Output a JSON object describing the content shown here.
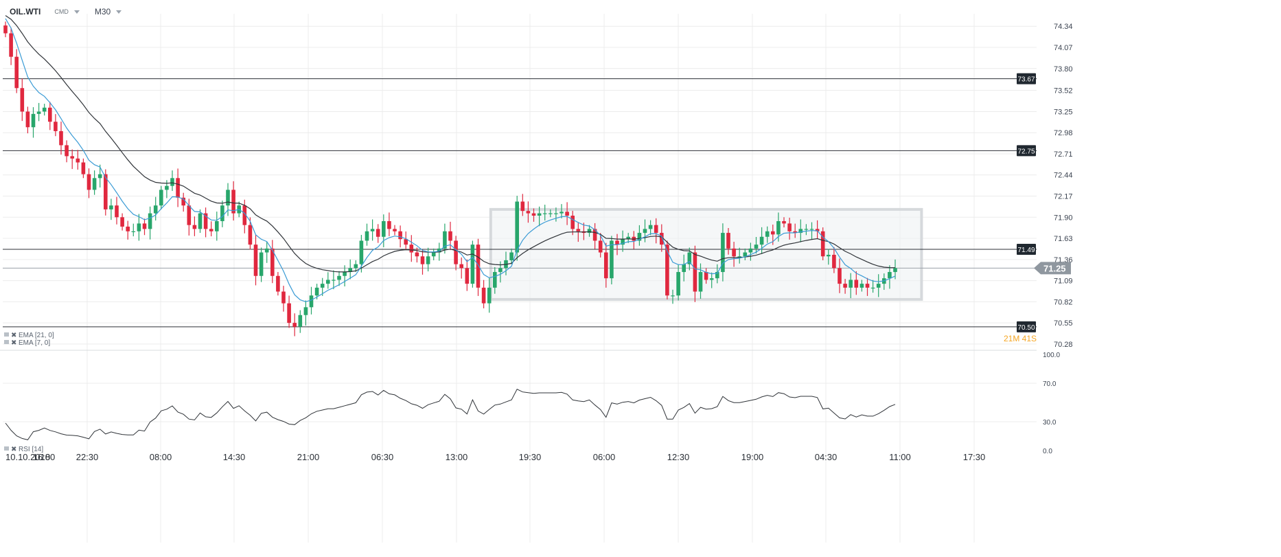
{
  "toolbar": {
    "symbol": "OIL.WTI",
    "instrument_type": "CMD",
    "timeframe": "M30"
  },
  "chart_data": {
    "type": "candlestick",
    "price_axis": {
      "ticks": [
        "74.34",
        "74.07",
        "73.80",
        "73.52",
        "73.25",
        "72.98",
        "72.71",
        "72.44",
        "72.17",
        "71.90",
        "71.63",
        "71.36",
        "71.09",
        "70.82",
        "70.55",
        "70.28"
      ],
      "range": [
        70.2,
        74.5
      ]
    },
    "time_axis": {
      "ticks": [
        "10.10.2018",
        "16:00",
        "22:30",
        "08:00",
        "14:30",
        "21:00",
        "06:30",
        "13:00",
        "19:30",
        "06:00",
        "12:30",
        "19:00",
        "04:30",
        "11:00",
        "17:30"
      ]
    },
    "horizontal_levels": [
      {
        "label": "73.67",
        "value": 73.67
      },
      {
        "label": "72.75",
        "value": 72.75
      },
      {
        "label": "71.49",
        "value": 71.49
      },
      {
        "label": "70.50",
        "value": 70.5
      }
    ],
    "current_price": {
      "label": "71.25",
      "value": 71.25,
      "countdown": "21M 41S"
    },
    "consolidation_box": {
      "price_top": 72.0,
      "price_bottom": 70.85,
      "from_index": 88,
      "to_index": 164
    },
    "indicators": [
      {
        "label": "EMA [21, 0]",
        "period": 21,
        "color": "#2f3338"
      },
      {
        "label": "EMA [7, 0]",
        "period": 7,
        "color": "#3a9bd5"
      }
    ],
    "candle_closes": [
      74.25,
      73.95,
      73.55,
      73.25,
      73.05,
      73.22,
      73.25,
      73.3,
      73.12,
      73.0,
      72.82,
      72.68,
      72.65,
      72.6,
      72.45,
      72.25,
      72.4,
      72.45,
      72.0,
      72.05,
      71.9,
      71.78,
      71.72,
      71.72,
      71.82,
      71.75,
      71.95,
      72.05,
      72.25,
      72.3,
      72.4,
      72.15,
      72.05,
      71.8,
      71.75,
      71.95,
      71.75,
      71.72,
      71.85,
      72.05,
      72.25,
      71.95,
      72.05,
      71.8,
      71.55,
      71.15,
      71.45,
      71.5,
      71.15,
      70.95,
      70.8,
      70.55,
      70.5,
      70.65,
      70.75,
      70.9,
      71.0,
      71.05,
      71.1,
      71.1,
      71.15,
      71.2,
      71.25,
      71.3,
      71.6,
      71.72,
      71.75,
      71.65,
      71.85,
      71.75,
      71.72,
      71.62,
      71.55,
      71.45,
      71.4,
      71.3,
      71.4,
      71.45,
      71.5,
      71.72,
      71.6,
      71.3,
      71.25,
      71.05,
      71.55,
      71.0,
      70.8,
      71.0,
      71.2,
      71.25,
      71.35,
      71.45,
      72.1,
      71.98,
      71.95,
      71.92,
      71.95,
      71.95,
      71.95,
      71.95,
      71.97,
      71.92,
      71.75,
      71.72,
      71.7,
      71.75,
      71.6,
      71.45,
      71.12,
      71.6,
      71.55,
      71.62,
      71.65,
      71.6,
      71.7,
      71.75,
      71.8,
      71.7,
      71.55,
      70.9,
      70.9,
      71.2,
      71.3,
      71.45,
      70.95,
      71.2,
      71.1,
      71.12,
      71.2,
      71.7,
      71.5,
      71.4,
      71.4,
      71.45,
      71.5,
      71.55,
      71.65,
      71.72,
      71.68,
      71.85,
      71.82,
      71.72,
      71.7,
      71.75,
      71.75,
      71.75,
      71.72,
      71.4,
      71.42,
      71.25,
      71.05,
      71.0,
      71.1,
      71.0,
      71.05,
      71.0,
      71.0,
      71.05,
      71.12,
      71.2,
      71.25
    ],
    "rsi": {
      "label": "RSI [14]",
      "period": 14,
      "ticks": [
        "100.0",
        "70.0",
        "30.0",
        "0.0"
      ],
      "levels": [
        100,
        70,
        30,
        0
      ]
    }
  },
  "colors": {
    "bull": "#28a66b",
    "bear": "#e0283f",
    "grid": "#ececec",
    "level_line": "#2b2f36",
    "label_bg": "#202830",
    "current_price_bg": "#8f979f",
    "countdown": "#f5a623",
    "box_stroke": "#d6d9dc",
    "box_fill": "#eef1f4"
  }
}
